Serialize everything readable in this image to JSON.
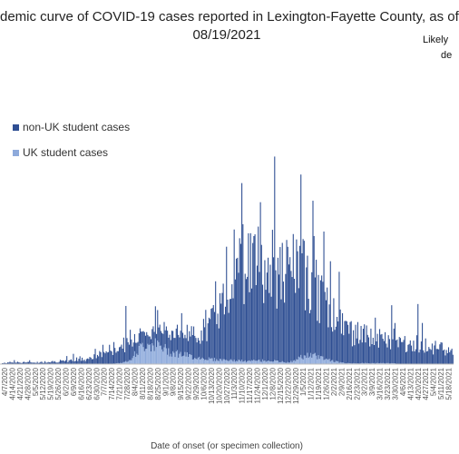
{
  "chart_data": {
    "type": "bar",
    "stacked": true,
    "title_lines": [
      "demic curve of COVID-19 cases reported in Lexington-Fayette County, as of",
      "08/19/2021"
    ],
    "note_lines": [
      "Likely",
      "de"
    ],
    "xlabel": "Date of onset (or specimen collection)",
    "legend_position": "top-left",
    "series": [
      {
        "name": "non-UK student cases",
        "color": "#2f4f93"
      },
      {
        "name": "UK student cases",
        "color": "#8eaadb"
      }
    ],
    "x_tick_labels": [
      "4/7/2020",
      "4/14/2020",
      "4/21/2020",
      "4/28/2020",
      "5/5/2020",
      "5/12/2020",
      "5/19/2020",
      "5/26/2020",
      "6/2/2020",
      "6/9/2020",
      "6/16/2020",
      "6/23/2020",
      "6/30/2020",
      "7/7/2020",
      "7/14/2020",
      "7/21/2020",
      "7/28/2020",
      "8/4/2020",
      "8/11/2020",
      "8/18/2020",
      "8/25/2020",
      "9/1/2020",
      "9/8/2020",
      "9/15/2020",
      "9/22/2020",
      "9/29/2020",
      "10/6/2020",
      "10/13/2020",
      "10/20/2020",
      "10/27/2020",
      "11/3/2020",
      "11/10/2020",
      "11/17/2020",
      "11/24/2020",
      "12/1/2020",
      "12/8/2020",
      "12/15/2020",
      "12/22/2020",
      "12/29/2020",
      "1/5/2021",
      "1/12/2021",
      "1/19/2021",
      "1/26/2021",
      "2/2/2021",
      "2/9/2021",
      "2/16/2021",
      "2/23/2021",
      "3/2/2021",
      "3/9/2021",
      "3/16/2021",
      "3/23/2021",
      "3/30/2021",
      "4/6/2021",
      "4/13/2021",
      "4/20/2021",
      "4/27/2021",
      "5/4/2021",
      "5/11/2021",
      "5/18/2021"
    ],
    "weekly_avg_daily_cases": {
      "non_uk": [
        1,
        2,
        2,
        2,
        2,
        2,
        3,
        3,
        3,
        4,
        5,
        6,
        8,
        12,
        16,
        18,
        20,
        20,
        17,
        16,
        18,
        20,
        22,
        22,
        24,
        26,
        30,
        38,
        50,
        70,
        95,
        110,
        118,
        112,
        105,
        100,
        98,
        100,
        105,
        98,
        90,
        78,
        65,
        55,
        45,
        38,
        34,
        32,
        30,
        28,
        26,
        24,
        23,
        25,
        24,
        22,
        20,
        18,
        16
      ],
      "uk": [
        0,
        0,
        0,
        0,
        0,
        0,
        0,
        0,
        0,
        0,
        0,
        0,
        0,
        0,
        0,
        1,
        2,
        8,
        18,
        24,
        22,
        18,
        14,
        12,
        10,
        8,
        7,
        6,
        5,
        5,
        4,
        4,
        3,
        4,
        4,
        4,
        3,
        2,
        3,
        8,
        10,
        9,
        7,
        4,
        2,
        1,
        1,
        1,
        1,
        1,
        1,
        1,
        0,
        0,
        0,
        0,
        0,
        0,
        0
      ]
    },
    "ylim": [
      0,
      300
    ]
  }
}
